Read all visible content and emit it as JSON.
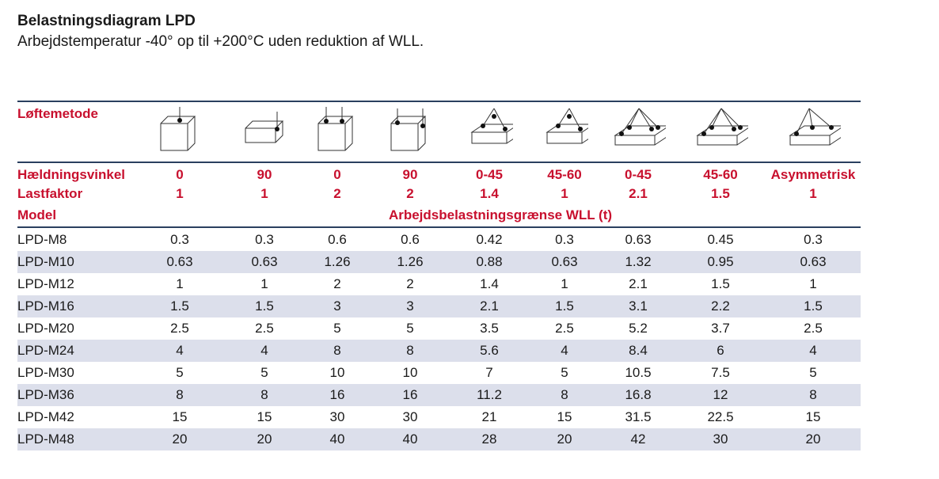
{
  "title": "Belastningsdiagram LPD",
  "subtitle": "Arbejdstemperatur -40° op til +200°C uden reduktion af WLL.",
  "method_label": "Løftemetode",
  "method_icons": [
    "vertical-single-point-icon",
    "horizontal-single-point-icon",
    "vertical-two-point-icon",
    "side-two-point-icon",
    "two-leg-sling-icon",
    "two-leg-sling-icon",
    "four-leg-sling-icon",
    "four-leg-sling-icon",
    "asymmetric-sling-icon"
  ],
  "angle_label": "Hældningsvinkel",
  "angles": [
    "0",
    "90",
    "0",
    "90",
    "0-45",
    "45-60",
    "0-45",
    "45-60",
    "Asymmetrisk"
  ],
  "factor_label": "Lastfaktor",
  "factors": [
    "1",
    "1",
    "2",
    "2",
    "1.4",
    "1",
    "2.1",
    "1.5",
    "1"
  ],
  "model_label": "Model",
  "wll_label": "Arbejdsbelastningsgrænse WLL (t)",
  "rows": [
    {
      "model": "LPD-M8",
      "values": [
        "0.3",
        "0.3",
        "0.6",
        "0.6",
        "0.42",
        "0.3",
        "0.63",
        "0.45",
        "0.3"
      ]
    },
    {
      "model": "LPD-M10",
      "values": [
        "0.63",
        "0.63",
        "1.26",
        "1.26",
        "0.88",
        "0.63",
        "1.32",
        "0.95",
        "0.63"
      ]
    },
    {
      "model": "LPD-M12",
      "values": [
        "1",
        "1",
        "2",
        "2",
        "1.4",
        "1",
        "2.1",
        "1.5",
        "1"
      ]
    },
    {
      "model": "LPD-M16",
      "values": [
        "1.5",
        "1.5",
        "3",
        "3",
        "2.1",
        "1.5",
        "3.1",
        "2.2",
        "1.5"
      ]
    },
    {
      "model": "LPD-M20",
      "values": [
        "2.5",
        "2.5",
        "5",
        "5",
        "3.5",
        "2.5",
        "5.2",
        "3.7",
        "2.5"
      ]
    },
    {
      "model": "LPD-M24",
      "values": [
        "4",
        "4",
        "8",
        "8",
        "5.6",
        "4",
        "8.4",
        "6",
        "4"
      ]
    },
    {
      "model": "LPD-M30",
      "values": [
        "5",
        "5",
        "10",
        "10",
        "7",
        "5",
        "10.5",
        "7.5",
        "5"
      ]
    },
    {
      "model": "LPD-M36",
      "values": [
        "8",
        "8",
        "16",
        "16",
        "11.2",
        "8",
        "16.8",
        "12",
        "8"
      ]
    },
    {
      "model": "LPD-M42",
      "values": [
        "15",
        "15",
        "30",
        "30",
        "21",
        "15",
        "31.5",
        "22.5",
        "15"
      ]
    },
    {
      "model": "LPD-M48",
      "values": [
        "20",
        "20",
        "40",
        "40",
        "28",
        "20",
        "42",
        "30",
        "20"
      ]
    }
  ],
  "colors": {
    "accent_red": "#c8102e",
    "rule_navy": "#2a3f5f",
    "stripe": "#dcdfeb"
  }
}
